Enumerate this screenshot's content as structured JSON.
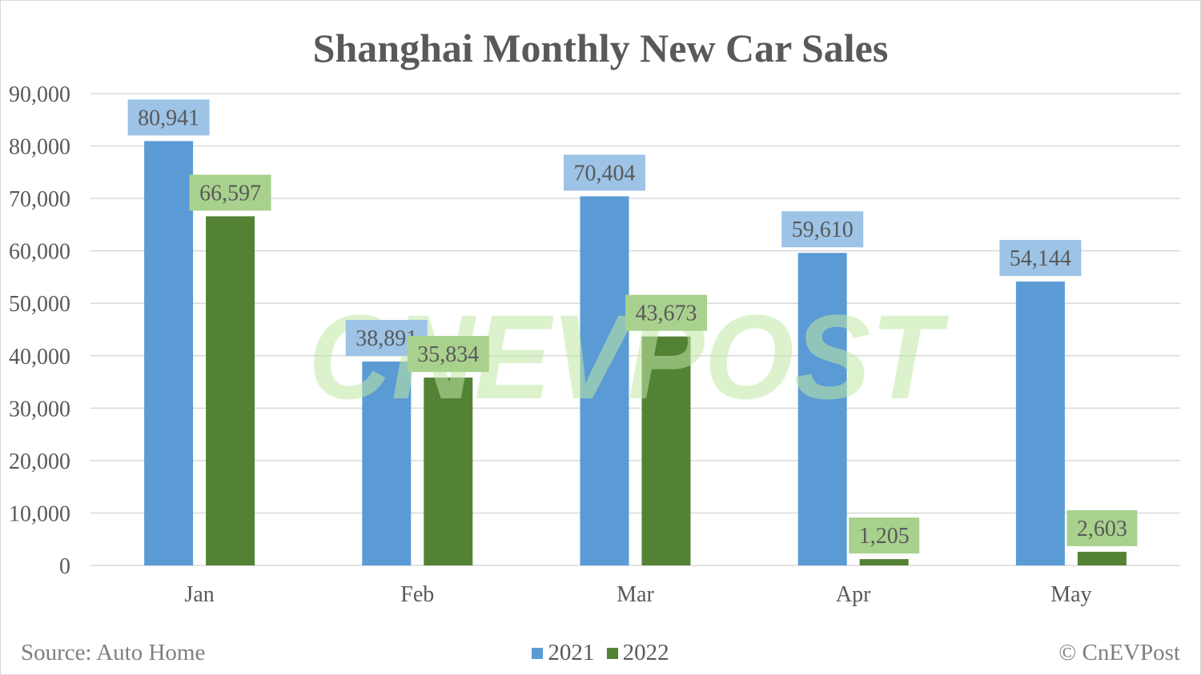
{
  "footer": {
    "source": "Source: Auto Home",
    "copyright": "© CnEVPost"
  },
  "watermark": "CNEVPOST",
  "colors": {
    "series_2021": "#5b9bd5",
    "series_2022": "#548235",
    "label_bg_2021": "#9dc3e6",
    "label_bg_2022": "#a9d18e",
    "gridline": "#d9d9d9",
    "text": "#595959"
  },
  "chart_data": {
    "type": "bar",
    "title": "Shanghai Monthly New Car Sales",
    "categories": [
      "Jan",
      "Feb",
      "Mar",
      "Apr",
      "May"
    ],
    "series": [
      {
        "name": "2021",
        "values": [
          80941,
          38891,
          70404,
          59610,
          54144
        ],
        "labels": [
          "80,941",
          "38,891",
          "70,404",
          "59,610",
          "54,144"
        ]
      },
      {
        "name": "2022",
        "values": [
          66597,
          35834,
          43673,
          1205,
          2603
        ],
        "labels": [
          "66,597",
          "35,834",
          "43,673",
          "1,205",
          "2,603"
        ]
      }
    ],
    "ylim": [
      0,
      90000
    ],
    "yticks": [
      0,
      10000,
      20000,
      30000,
      40000,
      50000,
      60000,
      70000,
      80000,
      90000
    ],
    "ytick_labels": [
      "0",
      "10,000",
      "20,000",
      "30,000",
      "40,000",
      "50,000",
      "60,000",
      "70,000",
      "80,000",
      "90,000"
    ],
    "grid": true,
    "legend": "bottom-center"
  }
}
